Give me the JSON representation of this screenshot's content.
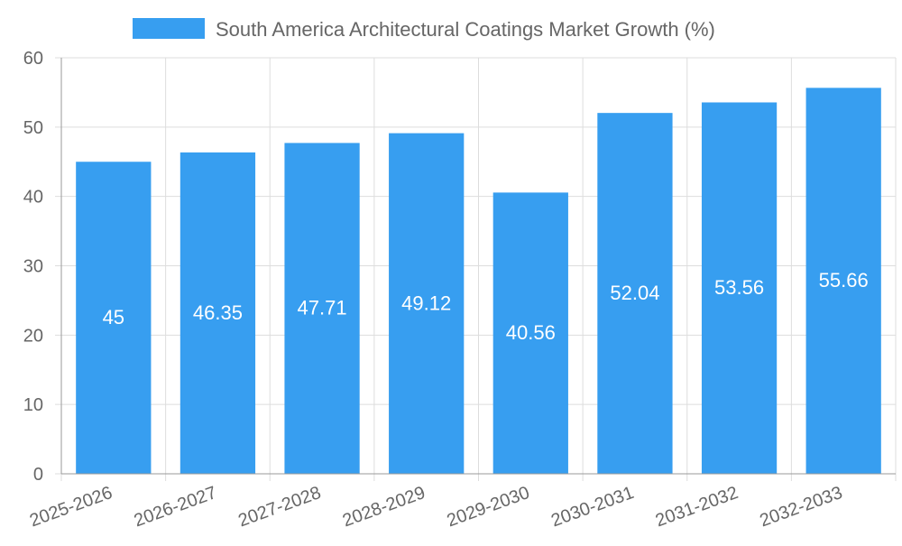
{
  "chart_data": {
    "type": "bar",
    "categories": [
      "2025-2026",
      "2026-2027",
      "2027-2028",
      "2028-2029",
      "2029-2030",
      "2030-2031",
      "2031-2032",
      "2032-2033"
    ],
    "series": [
      {
        "name": "South America Architectural Coatings Market Growth (%)",
        "values": [
          45,
          46.35,
          47.71,
          49.12,
          40.56,
          52.04,
          53.56,
          55.66
        ],
        "color": "#379ef0"
      }
    ],
    "data_labels": [
      "45",
      "46.35",
      "47.71",
      "49.12",
      "40.56",
      "52.04",
      "53.56",
      "55.66"
    ],
    "y_ticks": [
      "0",
      "10",
      "20",
      "30",
      "40",
      "50",
      "60"
    ],
    "ylim": [
      0,
      60
    ],
    "grid": true,
    "legend_position": "top-center",
    "colors": {
      "grid": "#dddddd",
      "axis": "#999999",
      "tick_text": "#666666",
      "label_text": "#ffffff"
    }
  }
}
